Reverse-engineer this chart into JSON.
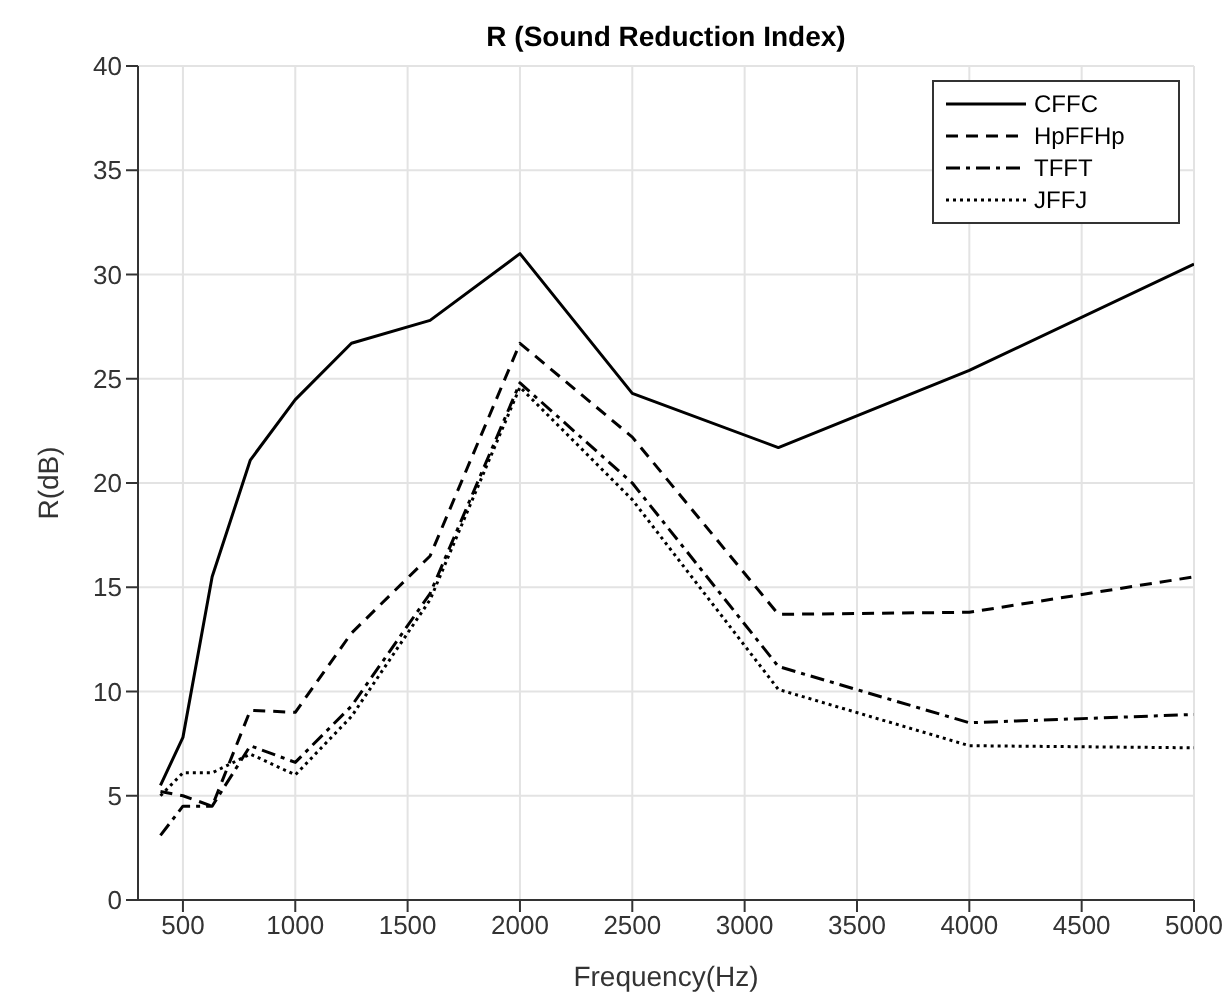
{
  "chart_data": {
    "type": "line",
    "title": "R (Sound Reduction Index)",
    "xlabel": "Frequency(Hz)",
    "ylabel": "R(dB)",
    "x": [
      400,
      500,
      630,
      800,
      1000,
      1250,
      1600,
      2000,
      2500,
      3150,
      4000,
      5000
    ],
    "series": [
      {
        "name": "CFFC",
        "color": "#000000",
        "line_style": "solid",
        "values": [
          5.5,
          7.8,
          15.5,
          21.1,
          24.0,
          26.7,
          27.8,
          31.0,
          24.3,
          21.7,
          25.4,
          30.5
        ]
      },
      {
        "name": "HpFFHp",
        "color": "#000000",
        "line_style": "dashed",
        "values": [
          5.2,
          5.0,
          4.5,
          9.1,
          9.0,
          12.8,
          16.5,
          26.7,
          22.2,
          13.7,
          13.8,
          15.5
        ]
      },
      {
        "name": "TFFT",
        "color": "#000000",
        "line_style": "dashdot",
        "values": [
          3.1,
          4.5,
          4.5,
          7.4,
          6.6,
          9.3,
          14.7,
          24.8,
          20.0,
          11.2,
          8.5,
          8.9
        ]
      },
      {
        "name": "JFFJ",
        "color": "#000000",
        "line_style": "dotted",
        "values": [
          5.0,
          6.1,
          6.1,
          7.0,
          6.0,
          8.8,
          14.4,
          24.6,
          19.2,
          10.1,
          7.4,
          7.3
        ]
      }
    ],
    "xlim": [
      300,
      5000
    ],
    "xticks": [
      500,
      1000,
      1500,
      2000,
      2500,
      3000,
      3500,
      4000,
      4500,
      5000
    ],
    "ylim": [
      0,
      40
    ],
    "yticks": [
      0,
      5,
      10,
      15,
      20,
      25,
      30,
      35,
      40
    ],
    "grid": true,
    "legend": "top right"
  }
}
